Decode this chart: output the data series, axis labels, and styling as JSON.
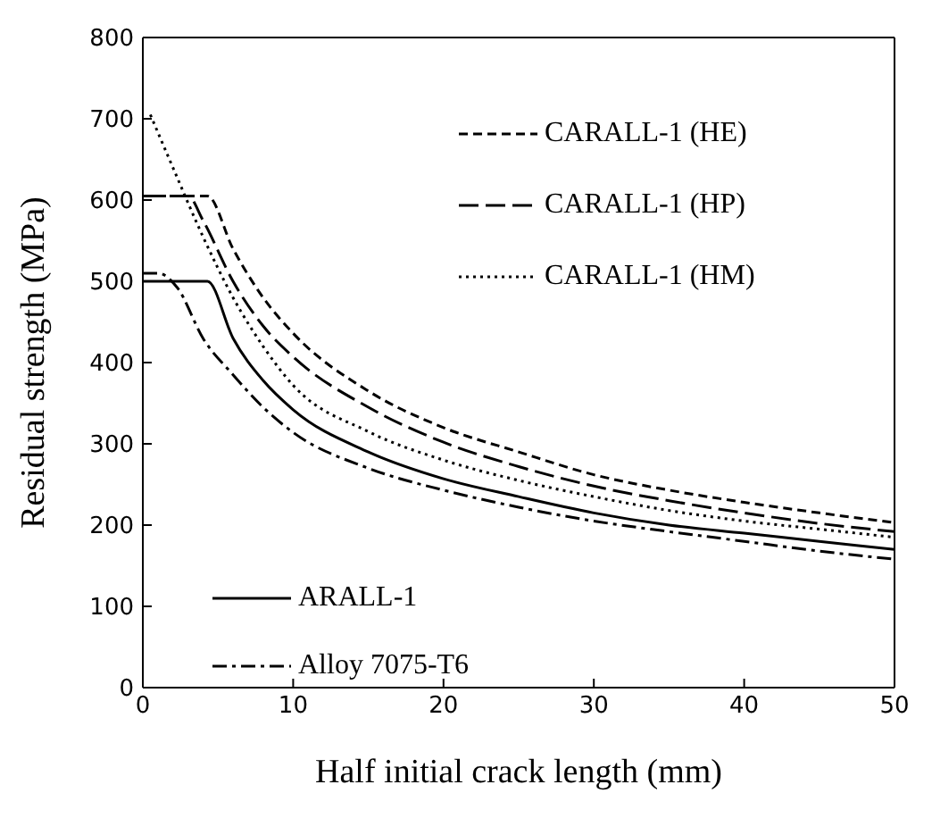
{
  "chart_data": {
    "type": "line",
    "xlabel": "Half initial crack length (mm)",
    "ylabel": "Residual strength (MPa)",
    "xlim": [
      0,
      50
    ],
    "xticks": [
      0,
      10,
      20,
      30,
      40,
      50
    ],
    "ylim": [
      0,
      800
    ],
    "yticks": [
      0,
      100,
      200,
      300,
      400,
      500,
      600,
      700,
      800
    ],
    "grid": false,
    "legend": "right",
    "marker": "none",
    "series": [
      {
        "name": "CARALL-1 (HE)",
        "color": "#000000",
        "line_style": "dashed",
        "x": [
          0,
          4.3,
          6,
          8,
          10,
          15,
          20,
          25,
          30,
          35,
          40,
          45,
          50
        ],
        "values": [
          605,
          605,
          540,
          480,
          436,
          365,
          320,
          290,
          262,
          243,
          228,
          215,
          203
        ]
      },
      {
        "name": "CARALL-1 (HP)",
        "color": "#000000",
        "line_style": "longdashed",
        "x": [
          0,
          3,
          4,
          6,
          8,
          10,
          15,
          20,
          25,
          30,
          35,
          40,
          45,
          50
        ],
        "values": [
          605,
          605,
          575,
          500,
          445,
          407,
          345,
          302,
          272,
          248,
          230,
          215,
          202,
          192
        ]
      },
      {
        "name": "CARALL-1 (HM)",
        "color": "#000000",
        "line_style": "dotted",
        "x": [
          0.5,
          2,
          4,
          6,
          8,
          10,
          15,
          20,
          25,
          30,
          35,
          40,
          45,
          50
        ],
        "values": [
          705,
          640,
          555,
          480,
          420,
          372,
          315,
          280,
          255,
          235,
          218,
          205,
          195,
          185
        ]
      },
      {
        "name": "ARALL-1",
        "color": "#000000",
        "line_style": "solid",
        "x": [
          0,
          4.3,
          6,
          8,
          10,
          15,
          20,
          25,
          30,
          35,
          40,
          45,
          50
        ],
        "values": [
          500,
          500,
          430,
          378,
          342,
          290,
          257,
          235,
          215,
          200,
          190,
          180,
          170
        ]
      },
      {
        "name": "Alloy 7075-T6",
        "color": "#000000",
        "line_style": "dashdot",
        "x": [
          0,
          1,
          2.3,
          4,
          6,
          8,
          10,
          15,
          20,
          25,
          30,
          35,
          40,
          45,
          50
        ],
        "values": [
          510,
          510,
          492,
          430,
          385,
          345,
          314,
          270,
          243,
          222,
          205,
          192,
          180,
          168,
          158
        ]
      }
    ]
  }
}
